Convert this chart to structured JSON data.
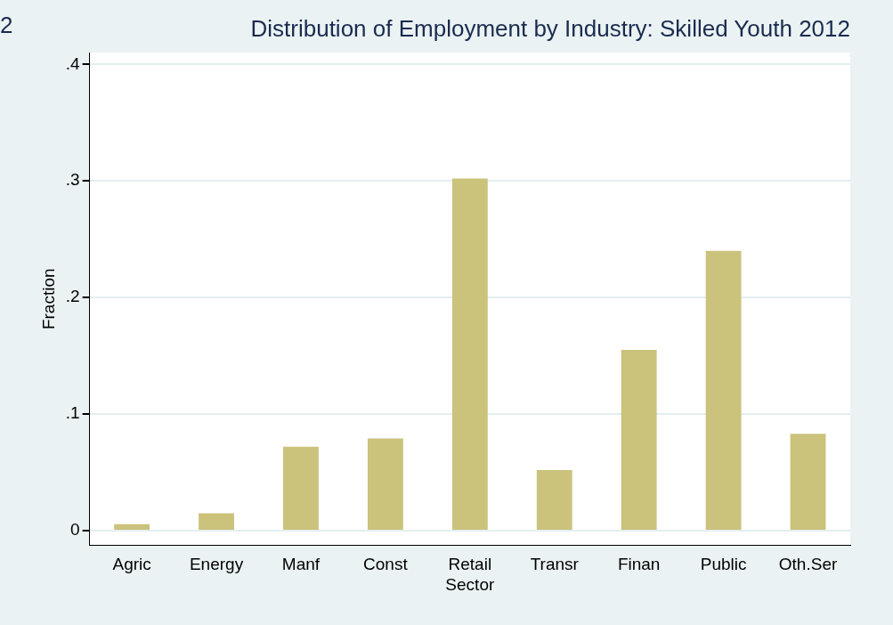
{
  "chart_data": {
    "type": "bar",
    "title": "Distribution of Employment by Industry: Skilled Youth 2012",
    "ylabel": "Fraction",
    "annotations": [
      "2"
    ],
    "categories": [
      "Agric",
      "Energy",
      "Manf",
      "Const",
      "Retail Sector",
      "Transr",
      "Finan",
      "Public",
      "Oth.Ser"
    ],
    "values": [
      0.0055,
      0.015,
      0.072,
      0.079,
      0.302,
      0.052,
      0.155,
      0.24,
      0.083
    ],
    "color": "#cbc27c",
    "ylim": [
      -0.0125,
      0.41
    ],
    "yticks": [
      {
        "value": 0,
        "label": "0"
      },
      {
        "value": 0.1,
        "label": ".1"
      },
      {
        "value": 0.2,
        "label": ".2"
      },
      {
        "value": 0.3,
        "label": ".3"
      },
      {
        "value": 0.4,
        "label": ".4"
      }
    ],
    "grid": "y",
    "legend": false
  }
}
